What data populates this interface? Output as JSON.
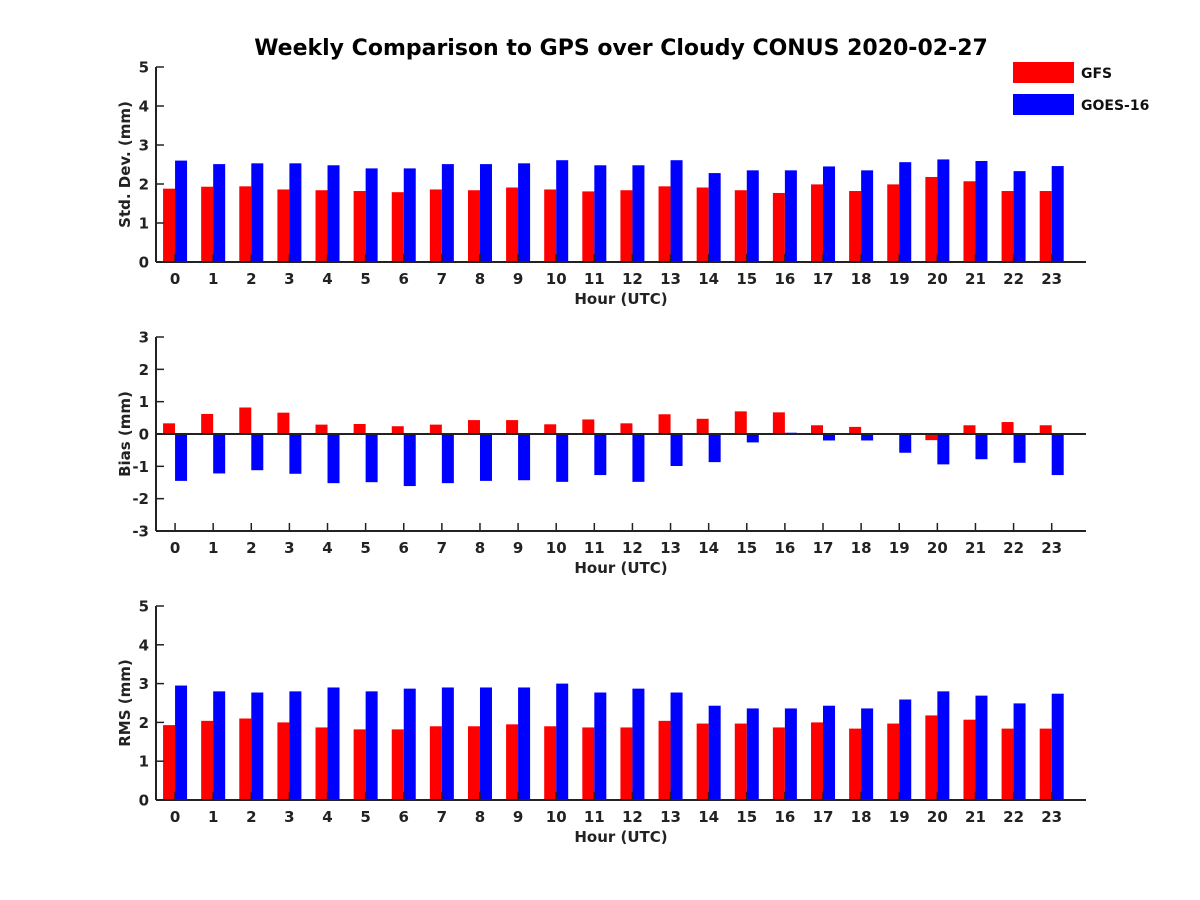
{
  "title": "Weekly Comparison to GPS over Cloudy CONUS 2020-02-27",
  "legend": {
    "placement": "top-right",
    "items": [
      {
        "name": "GFS",
        "color": "#ff0000"
      },
      {
        "name": "GOES-16",
        "color": "#0000ff"
      }
    ]
  },
  "chart_data": [
    {
      "type": "bar",
      "xlabel": "Hour (UTC)",
      "ylabel": "Std. Dev. (mm)",
      "ylim": [
        0,
        5
      ],
      "yticks": [
        0,
        1,
        2,
        3,
        4,
        5
      ],
      "categories": [
        "0",
        "1",
        "2",
        "3",
        "4",
        "5",
        "6",
        "7",
        "8",
        "9",
        "10",
        "11",
        "12",
        "13",
        "14",
        "15",
        "16",
        "17",
        "18",
        "19",
        "20",
        "21",
        "22",
        "23"
      ],
      "series": [
        {
          "name": "GFS",
          "color": "#ff0000",
          "values": [
            1.88,
            1.93,
            1.94,
            1.86,
            1.84,
            1.82,
            1.79,
            1.86,
            1.84,
            1.91,
            1.86,
            1.81,
            1.84,
            1.94,
            1.91,
            1.84,
            1.77,
            1.99,
            1.82,
            1.99,
            2.18,
            2.07,
            1.82,
            1.82
          ]
        },
        {
          "name": "GOES-16",
          "color": "#0000ff",
          "values": [
            2.6,
            2.51,
            2.53,
            2.53,
            2.48,
            2.4,
            2.4,
            2.51,
            2.51,
            2.53,
            2.61,
            2.48,
            2.48,
            2.61,
            2.28,
            2.35,
            2.35,
            2.45,
            2.35,
            2.56,
            2.63,
            2.59,
            2.33,
            2.46
          ]
        }
      ]
    },
    {
      "type": "bar",
      "xlabel": "Hour (UTC)",
      "ylabel": "Bias (mm)",
      "ylim": [
        -3,
        3
      ],
      "yticks": [
        -3,
        -2,
        -1,
        0,
        1,
        2,
        3
      ],
      "categories": [
        "0",
        "1",
        "2",
        "3",
        "4",
        "5",
        "6",
        "7",
        "8",
        "9",
        "10",
        "11",
        "12",
        "13",
        "14",
        "15",
        "16",
        "17",
        "18",
        "19",
        "20",
        "21",
        "22",
        "23"
      ],
      "series": [
        {
          "name": "GFS",
          "color": "#ff0000",
          "values": [
            0.33,
            0.62,
            0.82,
            0.66,
            0.29,
            0.31,
            0.24,
            0.29,
            0.43,
            0.43,
            0.3,
            0.45,
            0.33,
            0.61,
            0.47,
            0.7,
            0.67,
            0.27,
            0.22,
            0.0,
            -0.19,
            0.27,
            0.37,
            0.27
          ]
        },
        {
          "name": "GOES-16",
          "color": "#0000ff",
          "values": [
            -1.45,
            -1.22,
            -1.12,
            -1.23,
            -1.52,
            -1.49,
            -1.61,
            -1.52,
            -1.45,
            -1.43,
            -1.48,
            -1.27,
            -1.48,
            -0.99,
            -0.87,
            -0.26,
            0.04,
            -0.2,
            -0.2,
            -0.58,
            -0.94,
            -0.78,
            -0.89,
            -1.27
          ]
        }
      ]
    },
    {
      "type": "bar",
      "xlabel": "Hour (UTC)",
      "ylabel": "RMS (mm)",
      "ylim": [
        0,
        5
      ],
      "yticks": [
        0,
        1,
        2,
        3,
        4,
        5
      ],
      "categories": [
        "0",
        "1",
        "2",
        "3",
        "4",
        "5",
        "6",
        "7",
        "8",
        "9",
        "10",
        "11",
        "12",
        "13",
        "14",
        "15",
        "16",
        "17",
        "18",
        "19",
        "20",
        "21",
        "22",
        "23"
      ],
      "series": [
        {
          "name": "GFS",
          "color": "#ff0000",
          "values": [
            1.93,
            2.04,
            2.1,
            2.0,
            1.87,
            1.82,
            1.82,
            1.9,
            1.9,
            1.95,
            1.9,
            1.87,
            1.87,
            2.04,
            1.97,
            1.97,
            1.87,
            2.0,
            1.84,
            1.97,
            2.18,
            2.07,
            1.84,
            1.84
          ]
        },
        {
          "name": "GOES-16",
          "color": "#0000ff",
          "values": [
            2.95,
            2.8,
            2.77,
            2.8,
            2.9,
            2.8,
            2.87,
            2.9,
            2.9,
            2.9,
            3.0,
            2.77,
            2.87,
            2.77,
            2.43,
            2.36,
            2.36,
            2.43,
            2.36,
            2.59,
            2.8,
            2.69,
            2.49,
            2.74
          ]
        }
      ]
    }
  ]
}
